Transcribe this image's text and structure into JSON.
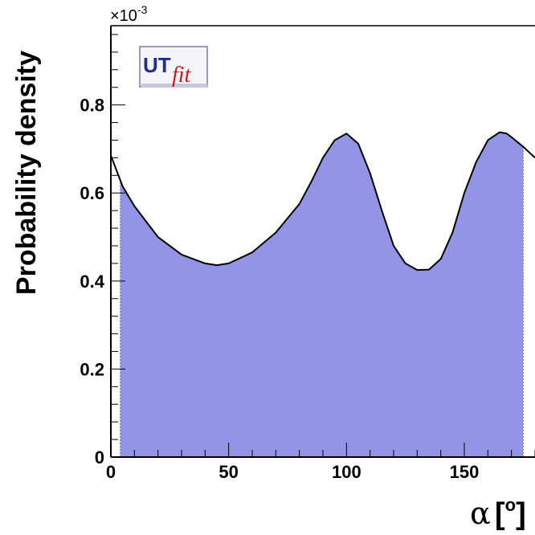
{
  "chart_data": {
    "type": "area",
    "title": "",
    "xlabel": "α[°]",
    "xlabel_symbol": "α",
    "xlabel_unit_open": "[",
    "xlabel_unit": "o",
    "xlabel_unit_close": "]",
    "ylabel": "Probability density",
    "y_multiplier": "×10",
    "y_multiplier_exp": "-3",
    "xlim": [
      0,
      180
    ],
    "ylim": [
      0,
      0.98
    ],
    "x_ticks": [
      0,
      50,
      100,
      150
    ],
    "x_tick_labels": [
      "0",
      "50",
      "100",
      "150"
    ],
    "y_ticks": [
      0,
      0.2,
      0.4,
      0.6,
      0.8
    ],
    "y_tick_labels": [
      "0",
      "0.2",
      "0.4",
      "0.6",
      "0.8"
    ],
    "grid": false,
    "fill_range": [
      4,
      175
    ],
    "fill_color": "#9494e6",
    "line_color": "#000000",
    "series": [
      {
        "x": [
          0,
          5,
          10,
          20,
          30,
          40,
          45,
          50,
          60,
          70,
          80,
          85,
          90,
          95,
          100,
          105,
          110,
          115,
          120,
          125,
          130,
          135,
          140,
          145,
          150,
          155,
          160,
          165,
          168,
          170,
          175,
          180
        ],
        "values": [
          0.685,
          0.615,
          0.57,
          0.5,
          0.46,
          0.44,
          0.436,
          0.44,
          0.465,
          0.51,
          0.575,
          0.625,
          0.68,
          0.72,
          0.735,
          0.712,
          0.645,
          0.56,
          0.48,
          0.44,
          0.425,
          0.426,
          0.45,
          0.51,
          0.6,
          0.67,
          0.72,
          0.738,
          0.735,
          0.727,
          0.705,
          0.68
        ]
      }
    ]
  },
  "logo": {
    "ut": "UT",
    "fit": "fit"
  }
}
